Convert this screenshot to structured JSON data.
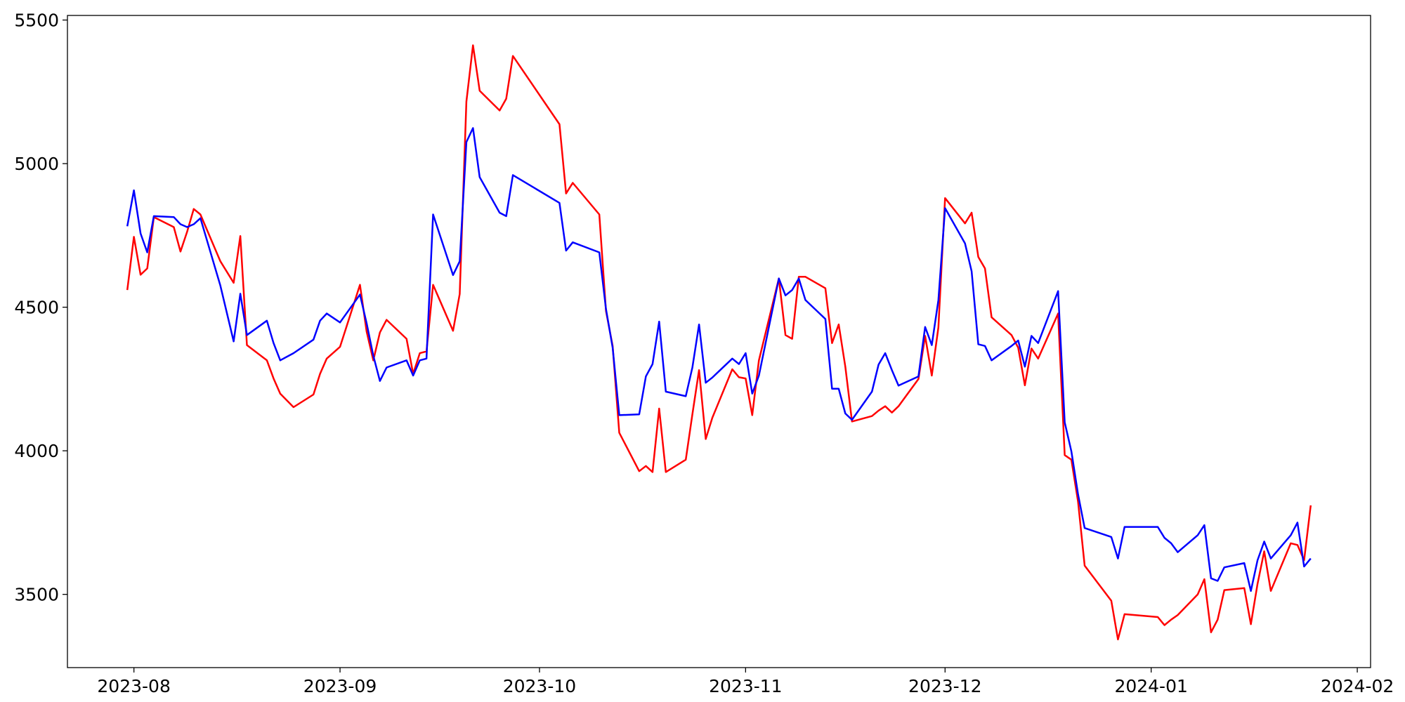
{
  "chart_data": {
    "type": "line",
    "x": [
      "2023-07-31",
      "2023-08-01",
      "2023-08-02",
      "2023-08-03",
      "2023-08-04",
      "2023-08-07",
      "2023-08-08",
      "2023-08-09",
      "2023-08-10",
      "2023-08-11",
      "2023-08-14",
      "2023-08-16",
      "2023-08-17",
      "2023-08-18",
      "2023-08-21",
      "2023-08-22",
      "2023-08-23",
      "2023-08-25",
      "2023-08-28",
      "2023-08-29",
      "2023-08-30",
      "2023-09-01",
      "2023-09-04",
      "2023-09-05",
      "2023-09-06",
      "2023-09-07",
      "2023-09-08",
      "2023-09-11",
      "2023-09-12",
      "2023-09-13",
      "2023-09-14",
      "2023-09-15",
      "2023-09-18",
      "2023-09-19",
      "2023-09-20",
      "2023-09-21",
      "2023-09-22",
      "2023-09-25",
      "2023-09-26",
      "2023-09-27",
      "2023-10-04",
      "2023-10-05",
      "2023-10-06",
      "2023-10-10",
      "2023-10-11",
      "2023-10-12",
      "2023-10-13",
      "2023-10-16",
      "2023-10-17",
      "2023-10-18",
      "2023-10-19",
      "2023-10-20",
      "2023-10-23",
      "2023-10-24",
      "2023-10-25",
      "2023-10-26",
      "2023-10-27",
      "2023-10-30",
      "2023-10-31",
      "2023-11-01",
      "2023-11-02",
      "2023-11-03",
      "2023-11-06",
      "2023-11-07",
      "2023-11-08",
      "2023-11-09",
      "2023-11-10",
      "2023-11-13",
      "2023-11-14",
      "2023-11-15",
      "2023-11-16",
      "2023-11-17",
      "2023-11-20",
      "2023-11-21",
      "2023-11-22",
      "2023-11-23",
      "2023-11-24",
      "2023-11-27",
      "2023-11-28",
      "2023-11-29",
      "2023-11-30",
      "2023-12-01",
      "2023-12-04",
      "2023-12-05",
      "2023-12-06",
      "2023-12-07",
      "2023-12-08",
      "2023-12-11",
      "2023-12-12",
      "2023-12-13",
      "2023-12-14",
      "2023-12-15",
      "2023-12-18",
      "2023-12-19",
      "2023-12-20",
      "2023-12-21",
      "2023-12-22",
      "2023-12-26",
      "2023-12-27",
      "2023-12-28",
      "2024-01-02",
      "2024-01-03",
      "2024-01-04",
      "2024-01-05",
      "2024-01-08",
      "2024-01-09",
      "2024-01-10",
      "2024-01-11",
      "2024-01-12",
      "2024-01-15",
      "2024-01-16",
      "2024-01-17",
      "2024-01-18",
      "2024-01-19",
      "2024-01-22",
      "2024-01-23",
      "2024-01-24",
      "2024-01-25"
    ],
    "series": [
      {
        "color": "#ff0000",
        "values": [
          4560,
          4745,
          4613,
          4635,
          4814,
          4779,
          4694,
          4763,
          4842,
          4823,
          4660,
          4585,
          4748,
          4368,
          4315,
          4252,
          4199,
          4152,
          4196,
          4268,
          4321,
          4362,
          4578,
          4415,
          4315,
          4412,
          4456,
          4390,
          4268,
          4340,
          4346,
          4578,
          4418,
          4546,
          5216,
          5412,
          5254,
          5185,
          5226,
          5375,
          5137,
          4896,
          4933,
          4823,
          4487,
          4365,
          4063,
          3929,
          3947,
          3926,
          4147,
          3926,
          3969,
          4127,
          4281,
          4041,
          4115,
          4284,
          4256,
          4252,
          4124,
          4315,
          4600,
          4403,
          4390,
          4606,
          4606,
          4566,
          4375,
          4440,
          4293,
          4102,
          4121,
          4140,
          4155,
          4133,
          4155,
          4250,
          4400,
          4262,
          4430,
          4880,
          4792,
          4829,
          4675,
          4635,
          4465,
          4403,
          4359,
          4228,
          4356,
          4321,
          4478,
          3985,
          3969,
          3823,
          3600,
          3478,
          3343,
          3431,
          3421,
          3393,
          3412,
          3428,
          3500,
          3553,
          3368,
          3412,
          3515,
          3522,
          3396,
          3537,
          3650,
          3512,
          3678,
          3672,
          3619,
          3810
        ]
      },
      {
        "color": "#0000ff",
        "values": [
          4782,
          4907,
          4757,
          4691,
          4817,
          4814,
          4789,
          4779,
          4789,
          4810,
          4575,
          4381,
          4547,
          4403,
          4453,
          4375,
          4315,
          4340,
          4387,
          4453,
          4478,
          4447,
          4544,
          4444,
          4331,
          4243,
          4290,
          4315,
          4262,
          4315,
          4321,
          4823,
          4612,
          4660,
          5075,
          5124,
          4953,
          4829,
          4817,
          4960,
          4863,
          4697,
          4726,
          4691,
          4494,
          4359,
          4124,
          4127,
          4259,
          4302,
          4450,
          4206,
          4190,
          4290,
          4440,
          4237,
          4255,
          4321,
          4302,
          4340,
          4199,
          4262,
          4600,
          4541,
          4560,
          4600,
          4525,
          4459,
          4216,
          4216,
          4130,
          4108,
          4206,
          4300,
          4340,
          4281,
          4227,
          4259,
          4431,
          4368,
          4525,
          4845,
          4722,
          4625,
          4371,
          4365,
          4315,
          4365,
          4384,
          4293,
          4400,
          4375,
          4556,
          4099,
          3998,
          3848,
          3731,
          3700,
          3625,
          3735,
          3735,
          3697,
          3678,
          3647,
          3706,
          3741,
          3556,
          3547,
          3594,
          3609,
          3512,
          3619,
          3684,
          3625,
          3706,
          3750,
          3597,
          3625
        ]
      }
    ],
    "xlim": [
      "2023-07-22",
      "2024-02-03"
    ],
    "xticks": [
      {
        "value": "2023-08-01",
        "label": "2023-08"
      },
      {
        "value": "2023-09-01",
        "label": "2023-09"
      },
      {
        "value": "2023-10-01",
        "label": "2023-10"
      },
      {
        "value": "2023-11-01",
        "label": "2023-11"
      },
      {
        "value": "2023-12-01",
        "label": "2023-12"
      },
      {
        "value": "2024-01-01",
        "label": "2024-01"
      },
      {
        "value": "2024-02-01",
        "label": "2024-02"
      }
    ],
    "ylim": [
      3245,
      5516
    ],
    "yticks": [
      3500,
      4000,
      4500,
      5000,
      5500
    ],
    "grid": false
  }
}
